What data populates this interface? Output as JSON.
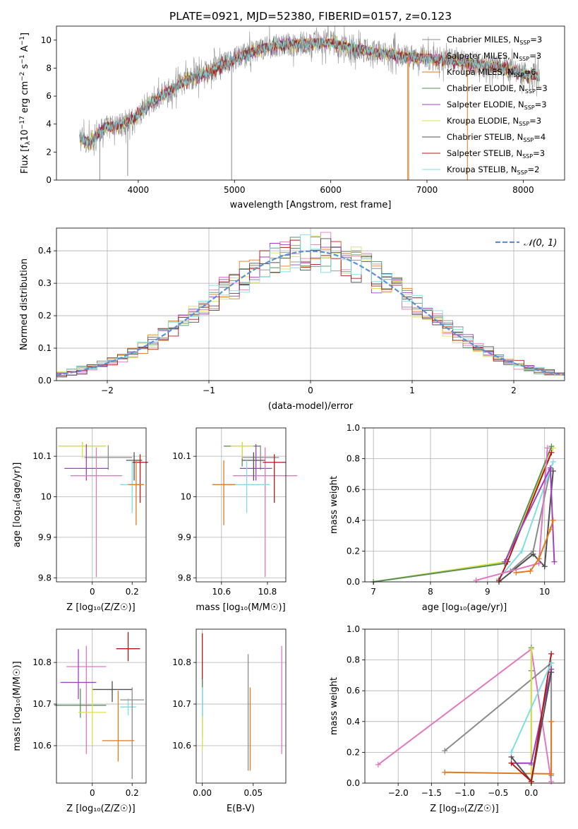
{
  "figure": {
    "title": "PLATE=0921, MJD=52380, FIBERID=0157, z=0.123"
  },
  "series_styles": [
    {
      "name": "Chabrier MILES, N_SSP=3",
      "label_pre": "Chabrier MILES, N",
      "label_sub": "SSP",
      "label_post": "=3",
      "color": "#8b8b8b"
    },
    {
      "name": "Salpeter MILES, N_SSP=3",
      "label_pre": "Salpeter MILES, N",
      "label_sub": "SSP",
      "label_post": "=3",
      "color": "#e377c2"
    },
    {
      "name": "Kroupa MILES, N_SSP=6",
      "label_pre": "Kroupa MILES, N",
      "label_sub": "SSP",
      "label_post": "=6",
      "color": "#e07a1f"
    },
    {
      "name": "Chabrier ELODIE, N_SSP=3",
      "label_pre": "Chabrier ELODIE, N",
      "label_sub": "SSP",
      "label_post": "=3",
      "color": "#5a8f5a"
    },
    {
      "name": "Salpeter ELODIE, N_SSP=3",
      "label_pre": "Salpeter ELODIE, N",
      "label_sub": "SSP",
      "label_post": "=3",
      "color": "#a040c0"
    },
    {
      "name": "Kroupa ELODIE, N_SSP=3",
      "label_pre": "Kroupa ELODIE, N",
      "label_sub": "SSP",
      "label_post": "=3",
      "color": "#dde24a"
    },
    {
      "name": "Chabrier STELIB, N_SSP=4",
      "label_pre": "Chabrier STELIB, N",
      "label_sub": "SSP",
      "label_post": "=4",
      "color": "#505050"
    },
    {
      "name": "Salpeter STELIB, N_SSP=3",
      "label_pre": "Salpeter STELIB, N",
      "label_sub": "SSP",
      "label_post": "=3",
      "color": "#b01818"
    },
    {
      "name": "Kroupa STELIB, N_SSP=2",
      "label_pre": "Kroupa STELIB, N",
      "label_sub": "SSP",
      "label_post": "=2",
      "color": "#7fdde6"
    }
  ],
  "chart_data": [
    {
      "id": "spectrum",
      "type": "line",
      "title": "PLATE=0921, MJD=52380, FIBERID=0157, z=0.123",
      "xlabel": "wavelength [Angstrom, rest frame]",
      "ylabel_pre": "Flux [f",
      "ylabel_sub": "λ",
      "ylabel_mid": "10",
      "ylabel_sup1": "−17",
      "ylabel_mid2": " erg cm",
      "ylabel_sup2": "−2",
      "ylabel_mid3": " s",
      "ylabel_sup3": "−1",
      "ylabel_mid4": " A",
      "ylabel_sup4": "−1",
      "ylabel_post": "]",
      "xlim": [
        3150,
        8430
      ],
      "ylim": [
        0,
        11
      ],
      "xticks": [
        4000,
        5000,
        6000,
        7000,
        8000
      ],
      "yticks": [
        0,
        2,
        4,
        6,
        8,
        10
      ],
      "legend": "top-right",
      "continuum": {
        "x": [
          3390,
          3500,
          3650,
          3800,
          3950,
          4050,
          4150,
          4300,
          4450,
          4600,
          4750,
          4850,
          4950,
          5050,
          5200,
          5400,
          5600,
          5800,
          6000,
          6200,
          6400,
          6600,
          6800,
          7000,
          7200,
          7400,
          7600,
          7800,
          8000,
          8170
        ],
        "y": [
          3.0,
          2.7,
          3.8,
          3.9,
          4.4,
          5.0,
          5.6,
          6.3,
          6.9,
          7.4,
          7.7,
          8.2,
          8.4,
          8.8,
          9.2,
          9.6,
          9.7,
          9.8,
          9.8,
          9.5,
          9.2,
          9.0,
          8.8,
          8.7,
          8.6,
          8.4,
          8.2,
          8.0,
          7.6,
          7.4
        ]
      }
    },
    {
      "id": "residuals",
      "type": "line",
      "xlabel": "(data-model)/error",
      "ylabel": "Normed distribution",
      "xlim": [
        -2.5,
        2.5
      ],
      "ylim": [
        0,
        0.47
      ],
      "xticks": [
        -2,
        -1,
        0,
        1,
        2
      ],
      "xtick_labels": [
        "−2",
        "−1",
        "0",
        "1",
        "2"
      ],
      "yticks": [
        0.0,
        0.1,
        0.2,
        0.3,
        0.4
      ],
      "ytick_labels": [
        "0.0",
        "0.1",
        "0.2",
        "0.3",
        "0.4"
      ],
      "grid": true,
      "legend": "top-right",
      "legend_label": "𝒩(0, 1)",
      "bin_width": 0.1
    },
    {
      "id": "age-vs-Z",
      "type": "scatter",
      "xlabel": "Z [log₁₀(Z/Z☉)]",
      "ylabel": "age  [log₁₀(age/yr)]",
      "xlim": [
        -0.18,
        0.27
      ],
      "ylim": [
        9.79,
        10.17
      ],
      "xticks": [
        0.0,
        0.2
      ],
      "yticks": [
        9.8,
        9.9,
        10.0,
        10.1
      ],
      "points": [
        {
          "c": 3,
          "x": -0.05,
          "y": 10.125,
          "ex": [
            0.12,
            0.12
          ],
          "ey": [
            0.0,
            0.01
          ]
        },
        {
          "c": 5,
          "x": -0.05,
          "y": 10.125,
          "ex": [
            0.12,
            0.12
          ],
          "ey": [
            0.03,
            0.01
          ]
        },
        {
          "c": 0,
          "x": 0.08,
          "y": 10.097,
          "ex": [
            0.12,
            0.12
          ],
          "ey": [
            0.03,
            0.03
          ]
        },
        {
          "c": 4,
          "x": -0.03,
          "y": 10.07,
          "ex": [
            0.11,
            0.11
          ],
          "ey": [
            0.03,
            0.06
          ]
        },
        {
          "c": 1,
          "x": 0.02,
          "y": 10.052,
          "ex": [
            0.13,
            0.13
          ],
          "ey": [
            0.25,
            0.07
          ]
        },
        {
          "c": 6,
          "x": 0.21,
          "y": 10.09,
          "ex": [
            0.04,
            0.04
          ],
          "ey": [
            0.05,
            0.02
          ]
        },
        {
          "c": 7,
          "x": 0.24,
          "y": 10.085,
          "ex": [
            0.04,
            0.04
          ],
          "ey": [
            0.1,
            0.02
          ]
        },
        {
          "c": 8,
          "x": 0.2,
          "y": 10.03,
          "ex": [
            0.06,
            0.06
          ],
          "ey": [
            0.07,
            0.06
          ]
        },
        {
          "c": 2,
          "x": 0.22,
          "y": 10.03,
          "ex": [
            0.04,
            0.04
          ],
          "ey": [
            0.1,
            0.06
          ]
        }
      ]
    },
    {
      "id": "age-vs-mass",
      "type": "scatter",
      "xlabel": "mass [log₁₀(M/M☉)]",
      "ylabel": "",
      "xlim": [
        10.49,
        10.88
      ],
      "ylim": [
        9.79,
        10.17
      ],
      "xticks": [
        10.6,
        10.8
      ],
      "yticks": [
        9.8,
        9.9,
        10.0,
        10.1
      ],
      "points": [
        {
          "c": 3,
          "x": 10.69,
          "y": 10.125,
          "ex": [
            0.08,
            0.08
          ],
          "ey": [
            0.05,
            0.01
          ]
        },
        {
          "c": 5,
          "x": 10.69,
          "y": 10.125,
          "ex": [
            0.05,
            0.05
          ],
          "ey": [
            0.03,
            0.01
          ]
        },
        {
          "c": 0,
          "x": 10.77,
          "y": 10.097,
          "ex": [
            0.08,
            0.08
          ],
          "ey": [
            0.03,
            0.03
          ]
        },
        {
          "c": 4,
          "x": 10.75,
          "y": 10.07,
          "ex": [
            0.07,
            0.07
          ],
          "ey": [
            0.03,
            0.06
          ]
        },
        {
          "c": 1,
          "x": 10.79,
          "y": 10.052,
          "ex": [
            0.14,
            0.14
          ],
          "ey": [
            0.25,
            0.07
          ]
        },
        {
          "c": 6,
          "x": 10.74,
          "y": 10.09,
          "ex": [
            0.05,
            0.05
          ],
          "ey": [
            0.05,
            0.02
          ]
        },
        {
          "c": 7,
          "x": 10.83,
          "y": 10.085,
          "ex": [
            0.05,
            0.05
          ],
          "ey": [
            0.1,
            0.02
          ]
        },
        {
          "c": 8,
          "x": 10.71,
          "y": 10.03,
          "ex": [
            0.1,
            0.1
          ],
          "ey": [
            0.07,
            0.06
          ]
        },
        {
          "c": 2,
          "x": 10.61,
          "y": 10.03,
          "ex": [
            0.05,
            0.05
          ],
          "ey": [
            0.1,
            0.06
          ]
        }
      ]
    },
    {
      "id": "weight-vs-age",
      "type": "line",
      "xlabel": "age  [log₁₀(age/yr)]",
      "ylabel": "mass weight",
      "xlim": [
        6.85,
        10.35
      ],
      "ylim": [
        0,
        1
      ],
      "xticks": [
        7,
        8,
        9,
        10
      ],
      "yticks": [
        0.0,
        0.2,
        0.4,
        0.6,
        0.8,
        1.0
      ],
      "ytick_labels": [
        "0.0",
        "0.2",
        "0.4",
        "0.6",
        "0.8",
        "1.0"
      ],
      "grid": true,
      "series": [
        {
          "c": 5,
          "x": [
            7.0,
            9.3,
            10.15
          ],
          "y": [
            0.0,
            0.13,
            0.87
          ]
        },
        {
          "c": 3,
          "x": [
            7.0,
            9.3,
            10.12
          ],
          "y": [
            0.0,
            0.12,
            0.88
          ]
        },
        {
          "c": 0,
          "x": [
            9.4,
            9.8,
            10.1
          ],
          "y": [
            0.07,
            0.2,
            0.73
          ]
        },
        {
          "c": 6,
          "x": [
            9.2,
            9.8,
            10.0,
            10.15
          ],
          "y": [
            0.0,
            0.18,
            0.1,
            0.72
          ]
        },
        {
          "c": 8,
          "x": [
            9.2,
            9.6,
            10.15
          ],
          "y": [
            0.02,
            0.2,
            0.78
          ]
        },
        {
          "c": 7,
          "x": [
            9.2,
            9.35,
            10.12
          ],
          "y": [
            0.01,
            0.13,
            0.84
          ]
        },
        {
          "c": 1,
          "x": [
            8.8,
            9.9,
            10.05
          ],
          "y": [
            0.01,
            0.12,
            0.87
          ]
        },
        {
          "c": 4,
          "x": [
            9.3,
            10.1,
            10.17
          ],
          "y": [
            0.13,
            0.74,
            0.13
          ]
        },
        {
          "c": 2,
          "x": [
            9.5,
            9.75,
            9.9,
            10.1,
            10.15
          ],
          "y": [
            0.06,
            0.07,
            0.15,
            0.34,
            0.4
          ]
        }
      ]
    },
    {
      "id": "mass-vs-Z",
      "type": "scatter",
      "xlabel": "Z [log₁₀(Z/Z☉)]",
      "ylabel": "mass [log₁₀(M/M☉)]",
      "xlim": [
        -0.18,
        0.27
      ],
      "ylim": [
        10.51,
        10.88
      ],
      "xticks": [
        0.0,
        0.2
      ],
      "yticks": [
        10.6,
        10.7,
        10.8
      ],
      "points": [
        {
          "c": 7,
          "x": 0.18,
          "y": 10.833,
          "ex": [
            0.06,
            0.06
          ],
          "ey": [
            0.03,
            0.04
          ]
        },
        {
          "c": 1,
          "x": -0.03,
          "y": 10.79,
          "ex": [
            0.1,
            0.1
          ],
          "ey": [
            0.21,
            0.05
          ]
        },
        {
          "c": 4,
          "x": -0.07,
          "y": 10.752,
          "ex": [
            0.09,
            0.09
          ],
          "ey": [
            0.04,
            0.08
          ]
        },
        {
          "c": 6,
          "x": 0.1,
          "y": 10.735,
          "ex": [
            0.1,
            0.1
          ],
          "ey": [
            0.03,
            0.02
          ]
        },
        {
          "c": 3,
          "x": -0.06,
          "y": 10.697,
          "ex": [
            0.13,
            0.13
          ],
          "ey": [
            0.03,
            0.04
          ]
        },
        {
          "c": 8,
          "x": 0.18,
          "y": 10.693,
          "ex": [
            0.04,
            0.04
          ],
          "ey": [
            0.02,
            0.02
          ]
        },
        {
          "c": 5,
          "x": 0.0,
          "y": 10.68,
          "ex": [
            0.07,
            0.07
          ],
          "ey": [
            0.08,
            0.06
          ]
        },
        {
          "c": 0,
          "x": 0.2,
          "y": 10.71,
          "ex": [
            0.06,
            0.06
          ],
          "ey": [
            0.19,
            0.03
          ]
        },
        {
          "c": 2,
          "x": 0.13,
          "y": 10.612,
          "ex": [
            0.08,
            0.08
          ],
          "ey": [
            0.05,
            0.12
          ]
        }
      ]
    },
    {
      "id": "mass-vs-EBV",
      "type": "scatter",
      "xlabel": "E(B-V)",
      "ylabel": "",
      "xlim": [
        -0.006,
        0.082
      ],
      "ylim": [
        10.51,
        10.88
      ],
      "xticks": [
        0.0,
        0.05
      ],
      "xtick_labels": [
        "0.00",
        "0.05"
      ],
      "yticks": [
        10.6,
        10.7,
        10.8
      ],
      "points": [
        {
          "c": 7,
          "x": 0.0,
          "y": 10.75,
          "ex": [
            0,
            0
          ],
          "ey": [
            0.1,
            0.12
          ]
        },
        {
          "c": 3,
          "x": 0.0,
          "y": 10.7,
          "ex": [
            0,
            0
          ],
          "ey": [
            0.08,
            0.06
          ]
        },
        {
          "c": 8,
          "x": 0.0,
          "y": 10.66,
          "ex": [
            0,
            0
          ],
          "ey": [
            0.06,
            0.08
          ]
        },
        {
          "c": 5,
          "x": 0.0,
          "y": 10.63,
          "ex": [
            0,
            0
          ],
          "ey": [
            0.04,
            0.04
          ]
        },
        {
          "c": 0,
          "x": 0.045,
          "y": 10.69,
          "ex": [
            0,
            0
          ],
          "ey": [
            0.15,
            0.13
          ]
        },
        {
          "c": 2,
          "x": 0.047,
          "y": 10.64,
          "ex": [
            0,
            0
          ],
          "ey": [
            0.1,
            0.1
          ]
        },
        {
          "c": 1,
          "x": 0.078,
          "y": 10.71,
          "ex": [
            0,
            0
          ],
          "ey": [
            0.13,
            0.13
          ]
        }
      ]
    },
    {
      "id": "weight-vs-Z",
      "type": "line",
      "xlabel": "Z [log₁₀(Z/Z☉)]",
      "ylabel": "mass weight",
      "xlim": [
        -2.5,
        0.5
      ],
      "ylim": [
        0,
        1
      ],
      "xticks": [
        -2.0,
        -1.5,
        -1.0,
        -0.5,
        0.0
      ],
      "xtick_labels": [
        "−2.0",
        "−1.5",
        "−1.0",
        "−0.5",
        "0.0"
      ],
      "yticks": [
        0.0,
        0.2,
        0.4,
        0.6,
        0.8,
        1.0
      ],
      "ytick_labels": [
        "0.0",
        "0.2",
        "0.4",
        "0.6",
        "0.8",
        "1.0"
      ],
      "grid": true,
      "series": [
        {
          "c": 1,
          "x": [
            -2.3,
            0.0,
            0.3
          ],
          "y": [
            0.12,
            0.87,
            0.01
          ]
        },
        {
          "c": 0,
          "x": [
            -1.3,
            0.3,
            0.3
          ],
          "y": [
            0.21,
            0.78,
            0.05
          ]
        },
        {
          "c": 2,
          "x": [
            -1.3,
            0.3,
            0.3
          ],
          "y": [
            0.07,
            0.06,
            0.4
          ]
        },
        {
          "c": 3,
          "x": [
            0.0,
            0.0,
            0.0
          ],
          "y": [
            0.88,
            0.73,
            0.12
          ]
        },
        {
          "c": 5,
          "x": [
            0.0,
            0.0
          ],
          "y": [
            0.87,
            0.0
          ]
        },
        {
          "c": 4,
          "x": [
            -0.3,
            0.0,
            0.3
          ],
          "y": [
            0.13,
            0.13,
            0.74
          ]
        },
        {
          "c": 6,
          "x": [
            -0.3,
            0.0,
            0.3
          ],
          "y": [
            0.17,
            0.01,
            0.72
          ]
        },
        {
          "c": 7,
          "x": [
            -0.3,
            0.0,
            0.3
          ],
          "y": [
            0.13,
            0.01,
            0.84
          ]
        },
        {
          "c": 8,
          "x": [
            -0.3,
            0.3,
            0.3
          ],
          "y": [
            0.2,
            0.78,
            0.78
          ]
        }
      ]
    }
  ]
}
